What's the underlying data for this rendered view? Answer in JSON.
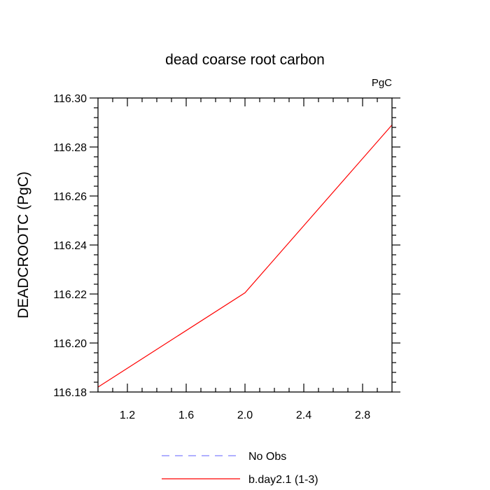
{
  "chart_data": {
    "type": "line",
    "title": "dead coarse root carbon",
    "units_label": "PgC",
    "ylabel": "DEADCROOTC  (PgC)",
    "xlabel": "",
    "xlim": [
      1.0,
      3.0
    ],
    "ylim": [
      116.18,
      116.3
    ],
    "x_ticks": [
      1.2,
      1.6,
      2.0,
      2.4,
      2.8
    ],
    "x_tick_labels": [
      "1.2",
      "1.6",
      "2.0",
      "2.4",
      "2.8"
    ],
    "y_ticks": [
      116.18,
      116.2,
      116.22,
      116.24,
      116.26,
      116.28,
      116.3
    ],
    "y_tick_labels": [
      "116.18",
      "116.20",
      "116.22",
      "116.24",
      "116.26",
      "116.28",
      "116.30"
    ],
    "grid": false,
    "legend_position": "bottom-center",
    "series": [
      {
        "name": "b.day2.1 (1-3)",
        "color": "#ff0000",
        "dash": "solid",
        "x": [
          1.0,
          2.0,
          3.0
        ],
        "y": [
          116.182,
          116.2205,
          116.289
        ]
      }
    ],
    "legend": [
      {
        "label": "No Obs",
        "color": "#8080ff",
        "dash": "dashed"
      },
      {
        "label": "b.day2.1 (1-3)",
        "color": "#ff0000",
        "dash": "solid"
      }
    ]
  }
}
